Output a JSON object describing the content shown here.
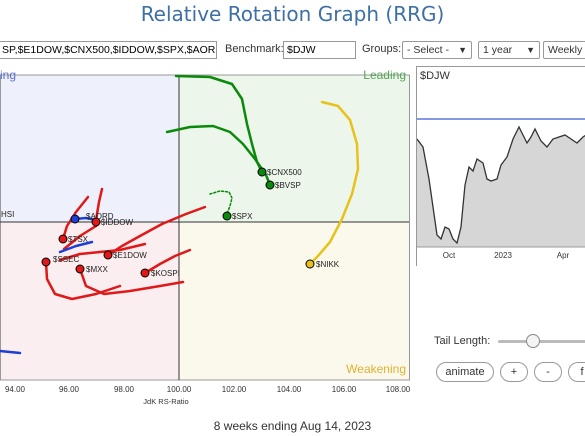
{
  "title": "Relative Rotation Graph (RRG)",
  "controls": {
    "symbols_value": "SP,$E1DOW,$CNX500,$IDDOW,$SPX,$AORD",
    "benchmark_label": "Benchmark:",
    "benchmark_value": "$DJW",
    "groups_label": "Groups:",
    "groups_value": "- Select -",
    "period_value": "1 year",
    "frequency_value": "Weekly"
  },
  "chart": {
    "quadrant_labels": {
      "leading": "Leading",
      "weakening": "Weakening",
      "lagging": "ing"
    },
    "x_ticks": [
      "94.00",
      "96.00",
      "98.00",
      "100.00",
      "102.00",
      "104.00",
      "106.00",
      "108.00"
    ],
    "x_axis_label": "JdK RS-Ratio",
    "colors": {
      "green": "#0a8a0a",
      "yellow": "#e8c21a",
      "red": "#e01818",
      "blue": "#1c3fd6"
    },
    "series": [
      {
        "name": "$CNX500",
        "color": "green"
      },
      {
        "name": "$BVSP",
        "color": "green"
      },
      {
        "name": "$SPX",
        "color": "green"
      },
      {
        "name": "$NIKK",
        "color": "yellow"
      },
      {
        "name": "$AORD",
        "color": "blue"
      },
      {
        "name": "$IDDOW",
        "color": "red"
      },
      {
        "name": "$TSX",
        "color": "red"
      },
      {
        "name": "$SSEC",
        "color": "red"
      },
      {
        "name": "$MXX",
        "color": "red"
      },
      {
        "name": "$E1DOW",
        "color": "red"
      },
      {
        "name": "$KOSPI",
        "color": "red"
      },
      {
        "name": "HSI",
        "color": "blue"
      }
    ]
  },
  "mini_chart": {
    "label": "$DJW",
    "x_ticks": [
      "Oct",
      "2023",
      "Apr"
    ]
  },
  "tail": {
    "label": "Tail Length:",
    "buttons": {
      "animate": "animate",
      "plus": "+",
      "minus": "-",
      "more": "f"
    }
  },
  "footer": "8 weeks ending Aug 14, 2023"
}
